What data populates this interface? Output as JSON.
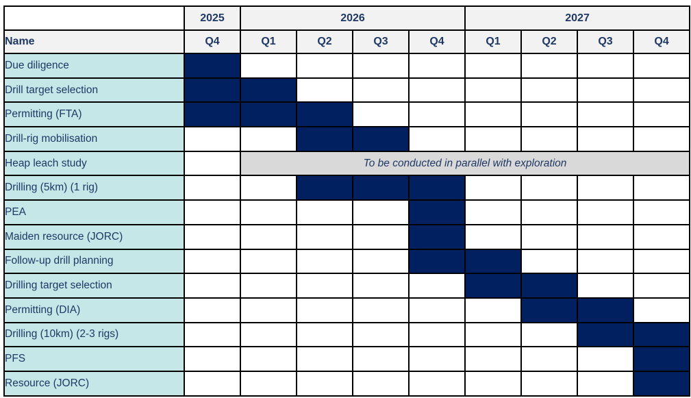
{
  "colors": {
    "bar_fill": "#002060",
    "task_label_bg": "#c5e7e8",
    "header_bg": "#f2f2f2",
    "note_bg": "#d9d9d9",
    "text": "#1f3864",
    "border": "#000000"
  },
  "header": {
    "name_label": "Name",
    "years": [
      {
        "label": "2025",
        "span": 1
      },
      {
        "label": "2026",
        "span": 4
      },
      {
        "label": "2027",
        "span": 4
      }
    ],
    "quarters": [
      "Q4",
      "Q1",
      "Q2",
      "Q3",
      "Q4",
      "Q1",
      "Q2",
      "Q3",
      "Q4"
    ]
  },
  "tasks": [
    {
      "name": "Due diligence",
      "cells": [
        1,
        0,
        0,
        0,
        0,
        0,
        0,
        0,
        0
      ]
    },
    {
      "name": "Drill target selection",
      "cells": [
        1,
        1,
        0,
        0,
        0,
        0,
        0,
        0,
        0
      ]
    },
    {
      "name": "Permitting (FTA)",
      "cells": [
        1,
        1,
        1,
        0,
        0,
        0,
        0,
        0,
        0
      ]
    },
    {
      "name": "Drill-rig mobilisation",
      "cells": [
        0,
        0,
        1,
        1,
        0,
        0,
        0,
        0,
        0
      ]
    },
    {
      "name": "Heap leach study",
      "note": "To be conducted in parallel with exploration",
      "note_start": 1,
      "note_span": 8
    },
    {
      "name": "Drilling (5km) (1 rig)",
      "cells": [
        0,
        0,
        1,
        1,
        1,
        0,
        0,
        0,
        0
      ]
    },
    {
      "name": "PEA",
      "cells": [
        0,
        0,
        0,
        0,
        1,
        0,
        0,
        0,
        0
      ]
    },
    {
      "name": "Maiden resource (JORC)",
      "cells": [
        0,
        0,
        0,
        0,
        1,
        0,
        0,
        0,
        0
      ]
    },
    {
      "name": "Follow-up drill planning",
      "cells": [
        0,
        0,
        0,
        0,
        1,
        1,
        0,
        0,
        0
      ]
    },
    {
      "name": "Drilling target selection",
      "cells": [
        0,
        0,
        0,
        0,
        0,
        1,
        1,
        0,
        0
      ]
    },
    {
      "name": "Permitting (DIA)",
      "cells": [
        0,
        0,
        0,
        0,
        0,
        0,
        1,
        1,
        0
      ]
    },
    {
      "name": "Drilling (10km) (2-3 rigs)",
      "cells": [
        0,
        0,
        0,
        0,
        0,
        0,
        0,
        1,
        1
      ]
    },
    {
      "name": "PFS",
      "cells": [
        0,
        0,
        0,
        0,
        0,
        0,
        0,
        0,
        1
      ]
    },
    {
      "name": "Resource (JORC)",
      "cells": [
        0,
        0,
        0,
        0,
        0,
        0,
        0,
        0,
        1
      ]
    }
  ],
  "chart_data": {
    "type": "table",
    "subtype": "gantt-timeline",
    "columns": [
      "2025 Q4",
      "2026 Q1",
      "2026 Q2",
      "2026 Q3",
      "2026 Q4",
      "2027 Q1",
      "2027 Q2",
      "2027 Q3",
      "2027 Q4"
    ],
    "tasks": [
      {
        "name": "Due diligence",
        "active_quarters": [
          "2025 Q4"
        ]
      },
      {
        "name": "Drill target selection",
        "active_quarters": [
          "2025 Q4",
          "2026 Q1"
        ]
      },
      {
        "name": "Permitting (FTA)",
        "active_quarters": [
          "2025 Q4",
          "2026 Q1",
          "2026 Q2"
        ]
      },
      {
        "name": "Drill-rig mobilisation",
        "active_quarters": [
          "2026 Q2",
          "2026 Q3"
        ]
      },
      {
        "name": "Heap leach study",
        "active_quarters": [],
        "annotation": "To be conducted in parallel with exploration",
        "annotation_span": [
          "2026 Q1",
          "2027 Q4"
        ]
      },
      {
        "name": "Drilling (5km) (1 rig)",
        "active_quarters": [
          "2026 Q2",
          "2026 Q3",
          "2026 Q4"
        ]
      },
      {
        "name": "PEA",
        "active_quarters": [
          "2026 Q4"
        ]
      },
      {
        "name": "Maiden resource (JORC)",
        "active_quarters": [
          "2026 Q4"
        ]
      },
      {
        "name": "Follow-up drill planning",
        "active_quarters": [
          "2026 Q4",
          "2027 Q1"
        ]
      },
      {
        "name": "Drilling target selection",
        "active_quarters": [
          "2027 Q1",
          "2027 Q2"
        ]
      },
      {
        "name": "Permitting (DIA)",
        "active_quarters": [
          "2027 Q2",
          "2027 Q3"
        ]
      },
      {
        "name": "Drilling (10km) (2-3 rigs)",
        "active_quarters": [
          "2027 Q3",
          "2027 Q4"
        ]
      },
      {
        "name": "PFS",
        "active_quarters": [
          "2027 Q4"
        ]
      },
      {
        "name": "Resource (JORC)",
        "active_quarters": [
          "2027 Q4"
        ]
      }
    ]
  }
}
